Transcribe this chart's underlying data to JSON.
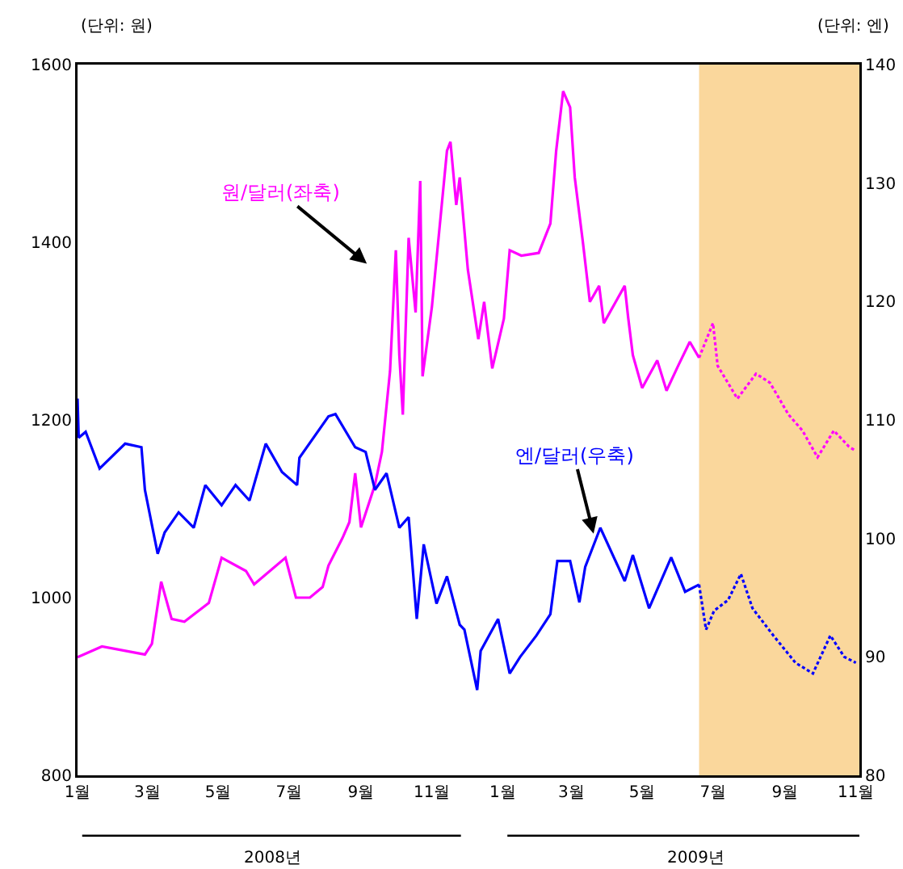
{
  "chart_data": {
    "type": "line",
    "ylabel": "(단위: 원)",
    "y2label": "(단위: 엔)",
    "xlim": [
      "2008-01-01",
      "2009-11-04"
    ],
    "xticks": [
      {
        "value": "2008-01-01",
        "label": "1월"
      },
      {
        "value": "2008-03-01",
        "label": "3월"
      },
      {
        "value": "2008-05-01",
        "label": "5월"
      },
      {
        "value": "2008-07-01",
        "label": "7월"
      },
      {
        "value": "2008-09-01",
        "label": "9월"
      },
      {
        "value": "2008-11-01",
        "label": "11월"
      },
      {
        "value": "2009-01-01",
        "label": "1월"
      },
      {
        "value": "2009-03-01",
        "label": "3월"
      },
      {
        "value": "2009-05-01",
        "label": "5월"
      },
      {
        "value": "2009-07-01",
        "label": "7월"
      },
      {
        "value": "2009-09-01",
        "label": "9월"
      },
      {
        "value": "2009-11-01",
        "label": "11월"
      }
    ],
    "ylim": [
      800,
      1600
    ],
    "yticks": [
      800,
      1000,
      1200,
      1400,
      1600
    ],
    "y2lim": [
      80,
      140
    ],
    "y2ticks": [
      80,
      90,
      100,
      110,
      120,
      130,
      140
    ],
    "grid": false,
    "legend": false,
    "bands": [
      {
        "axis": "x",
        "from": "2009-06-19",
        "to": "2009-11-04",
        "color": "#f5a623"
      }
    ],
    "annotations": [
      "2008년",
      "2009년"
    ],
    "series": [
      {
        "name": "원/달러(좌축)",
        "color": "#ff00ff",
        "x": [
          "2008-01-01",
          "2008-01-22",
          "2008-02-28",
          "2008-03-05",
          "2008-03-13",
          "2008-03-22",
          "2008-04-02",
          "2008-04-23",
          "2008-05-04",
          "2008-05-25",
          "2008-06-01",
          "2008-06-28",
          "2008-07-07",
          "2008-07-19",
          "2008-07-30",
          "2008-08-04",
          "2008-08-16",
          "2008-08-22",
          "2008-08-27",
          "2008-09-01",
          "2008-09-13",
          "2008-09-19",
          "2008-09-26",
          "2008-10-01",
          "2008-10-04",
          "2008-10-07",
          "2008-10-12",
          "2008-10-18",
          "2008-10-22",
          "2008-10-24",
          "2008-11-01",
          "2008-11-14",
          "2008-11-17",
          "2008-11-22",
          "2008-11-25",
          "2008-12-02",
          "2008-12-11",
          "2008-12-16",
          "2008-12-23",
          "2009-01-02",
          "2009-01-07",
          "2009-01-17",
          "2009-02-01",
          "2009-02-11",
          "2009-02-16",
          "2009-02-22",
          "2009-02-28",
          "2009-03-04",
          "2009-03-11",
          "2009-03-17",
          "2009-03-25",
          "2009-03-29",
          "2009-04-16",
          "2009-04-19",
          "2009-04-23",
          "2009-05-01",
          "2009-05-14",
          "2009-05-22",
          "2009-06-01",
          "2009-06-11",
          "2009-06-19"
        ],
        "values": [
          933,
          945,
          936,
          948,
          1018,
          976,
          973,
          994,
          1045,
          1030,
          1015,
          1045,
          1000,
          1000,
          1012,
          1036,
          1067,
          1085,
          1140,
          1079,
          1127,
          1164,
          1255,
          1391,
          1273,
          1206,
          1405,
          1321,
          1469,
          1249,
          1327,
          1503,
          1513,
          1442,
          1473,
          1369,
          1291,
          1333,
          1258,
          1314,
          1391,
          1385,
          1388,
          1421,
          1503,
          1570,
          1552,
          1473,
          1400,
          1333,
          1351,
          1309,
          1351,
          1315,
          1273,
          1236,
          1267,
          1233,
          1261,
          1288,
          1270
        ]
      },
      {
        "name": "엔/달러(우축)",
        "color": "#0000ff",
        "axis": "y2",
        "x": [
          "2008-01-01",
          "2008-01-02",
          "2008-01-08",
          "2008-01-20",
          "2008-02-11",
          "2008-02-25",
          "2008-02-28",
          "2008-03-10",
          "2008-03-16",
          "2008-03-28",
          "2008-04-10",
          "2008-04-20",
          "2008-05-04",
          "2008-05-16",
          "2008-05-28",
          "2008-06-11",
          "2008-06-25",
          "2008-07-08",
          "2008-07-10",
          "2008-08-04",
          "2008-08-10",
          "2008-08-27",
          "2008-09-05",
          "2008-09-13",
          "2008-09-23",
          "2008-10-04",
          "2008-10-12",
          "2008-10-19",
          "2008-10-25",
          "2008-11-05",
          "2008-11-14",
          "2008-11-25",
          "2008-11-29",
          "2008-12-10",
          "2008-12-13",
          "2008-12-28",
          "2009-01-07",
          "2009-01-16",
          "2009-01-30",
          "2009-02-11",
          "2009-02-17",
          "2009-02-28",
          "2009-03-08",
          "2009-03-13",
          "2009-03-26",
          "2009-04-16",
          "2009-04-23",
          "2009-05-07",
          "2009-05-26",
          "2009-06-07",
          "2009-06-19"
        ],
        "values": [
          111.8,
          108.5,
          109.0,
          105.9,
          108.0,
          107.7,
          104.1,
          98.7,
          100.5,
          102.2,
          100.9,
          104.5,
          102.8,
          104.5,
          103.2,
          108.0,
          105.6,
          104.5,
          106.8,
          110.3,
          110.5,
          107.7,
          107.3,
          104.1,
          105.5,
          100.9,
          101.8,
          93.2,
          99.5,
          94.5,
          96.8,
          92.7,
          92.3,
          87.2,
          90.5,
          93.2,
          88.6,
          90.0,
          91.8,
          93.6,
          98.1,
          98.1,
          94.6,
          97.6,
          100.9,
          96.4,
          98.6,
          94.1,
          98.4,
          95.5,
          96.1
        ]
      },
      {
        "color": "#ff00ff",
        "line_style": "dotted",
        "x": [
          "2009-06-19",
          "2009-07-01",
          "2009-07-05",
          "2009-07-22",
          "2009-08-07",
          "2009-08-19",
          "2009-09-04",
          "2009-09-16",
          "2009-09-29",
          "2009-10-13",
          "2009-10-26",
          "2009-11-01"
        ],
        "values": [
          1270,
          1309,
          1261,
          1224,
          1252,
          1242,
          1206,
          1188,
          1158,
          1188,
          1170,
          1165
        ]
      },
      {
        "color": "#0000ff",
        "axis": "y2",
        "line_style": "dotted",
        "x": [
          "2009-06-19",
          "2009-06-25",
          "2009-07-02",
          "2009-07-14",
          "2009-07-25",
          "2009-08-04",
          "2009-08-22",
          "2009-09-10",
          "2009-09-25",
          "2009-10-10",
          "2009-10-22",
          "2009-11-01"
        ],
        "values": [
          96.1,
          92.3,
          93.9,
          94.8,
          97.0,
          94.1,
          91.8,
          89.5,
          88.6,
          91.8,
          90.0,
          89.5
        ]
      }
    ]
  }
}
